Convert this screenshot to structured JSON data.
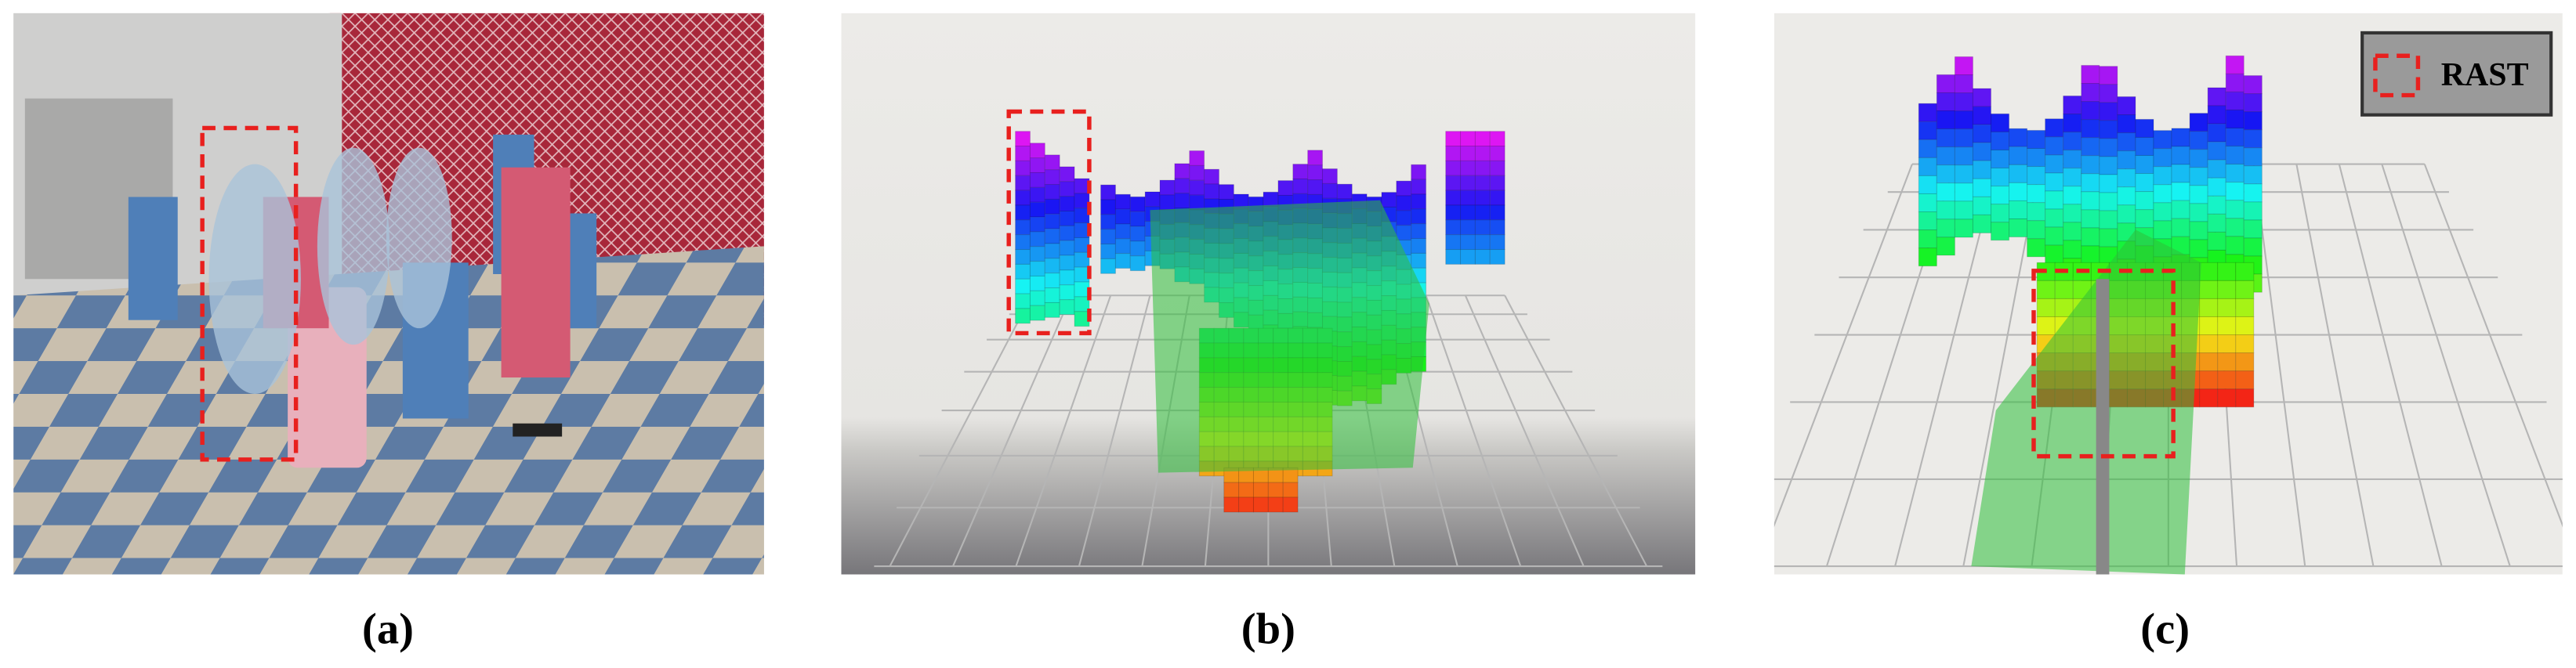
{
  "panels": [
    {
      "label": "(a)"
    },
    {
      "label": "(b)"
    },
    {
      "label": "(c)",
      "legend": "RAST"
    }
  ]
}
